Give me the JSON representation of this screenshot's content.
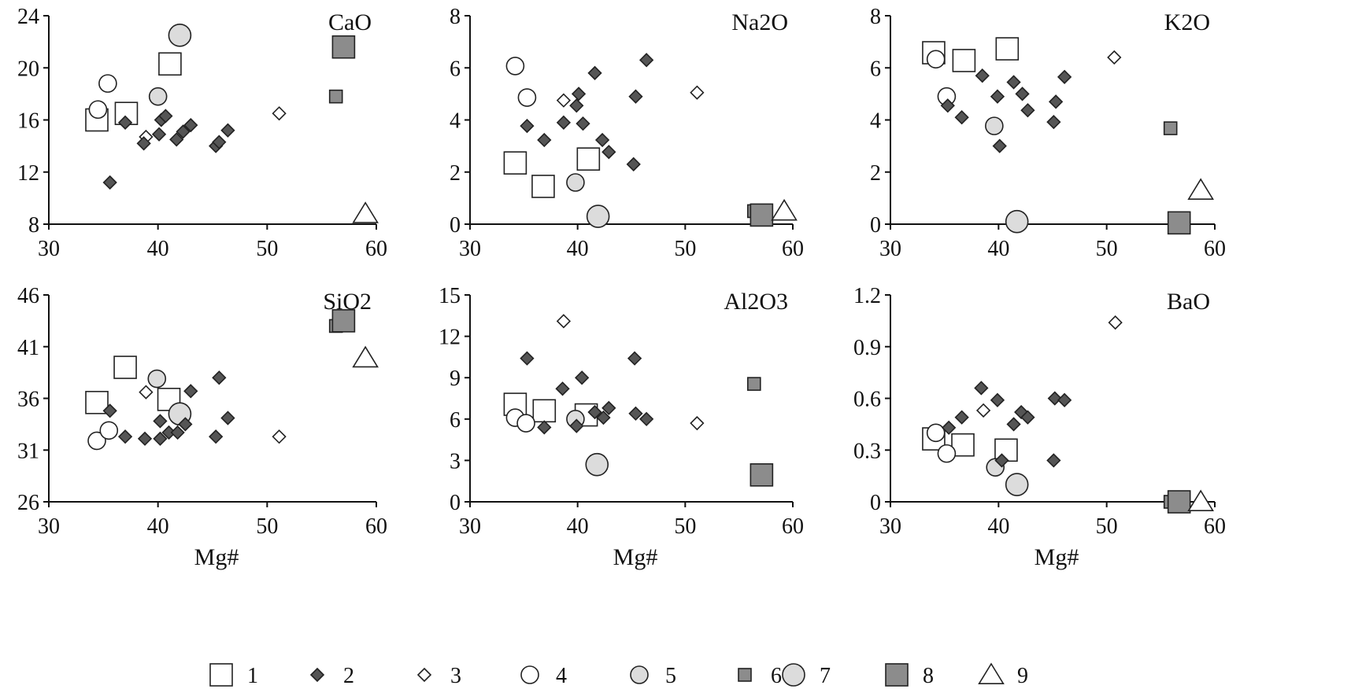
{
  "chart_data": {
    "type": "scatter",
    "xlabel": "Mg#",
    "legend": {
      "placement": "bottom",
      "entries": [
        "1",
        "2",
        "3",
        "4",
        "5",
        "6",
        "7",
        "8",
        "9"
      ]
    },
    "styles": {
      "1": {
        "shape": "square",
        "fill": "#ffffff",
        "size": "large"
      },
      "2": {
        "shape": "diamond",
        "fill": "#555555",
        "size": "small"
      },
      "3": {
        "shape": "diamond",
        "fill": "#ffffff",
        "size": "small"
      },
      "4": {
        "shape": "circle",
        "fill": "#ffffff",
        "size": "medium"
      },
      "5": {
        "shape": "circle",
        "fill": "#dcdcdc",
        "size": "medium"
      },
      "6": {
        "shape": "square",
        "fill": "#8c8c8c",
        "size": "small"
      },
      "7": {
        "shape": "circle",
        "fill": "#dcdcdc",
        "size": "large"
      },
      "8": {
        "shape": "square",
        "fill": "#8c8c8c",
        "size": "large"
      },
      "9": {
        "shape": "triangle",
        "fill": "#ffffff",
        "size": "large"
      }
    },
    "panels": [
      {
        "title": "CaO",
        "xlim": [
          30,
          60
        ],
        "xticks": [
          "30",
          "40",
          "50",
          "60"
        ],
        "ylim": [
          8,
          24
        ],
        "yticks": [
          "8",
          "12",
          "16",
          "20",
          "24"
        ],
        "series": {
          "1": [
            [
              34.4,
              16.0
            ],
            [
              37.1,
              16.5
            ],
            [
              41.1,
              20.3
            ]
          ],
          "2": [
            [
              35.6,
              11.2
            ],
            [
              37.0,
              15.8
            ],
            [
              38.7,
              14.2
            ],
            [
              40.1,
              14.9
            ],
            [
              40.3,
              16.0
            ],
            [
              40.7,
              16.3
            ],
            [
              41.7,
              14.5
            ],
            [
              42.3,
              15.1
            ],
            [
              43.0,
              15.6
            ],
            [
              45.3,
              14.0
            ],
            [
              45.6,
              14.3
            ],
            [
              46.4,
              15.2
            ]
          ],
          "3": [
            [
              38.9,
              14.7
            ],
            [
              51.1,
              16.5
            ]
          ],
          "4": [
            [
              34.5,
              16.8
            ],
            [
              35.4,
              18.8
            ]
          ],
          "5": [
            [
              40.0,
              17.8
            ]
          ],
          "6": [
            [
              56.3,
              17.8
            ]
          ],
          "7": [
            [
              42.0,
              22.5
            ]
          ],
          "8": [
            [
              57.0,
              21.6
            ]
          ],
          "9": [
            [
              59.0,
              8.8
            ]
          ]
        }
      },
      {
        "title": "Na2O",
        "xlim": [
          30,
          60
        ],
        "xticks": [
          "30",
          "40",
          "50",
          "60"
        ],
        "ylim": [
          0,
          8
        ],
        "yticks": [
          "0",
          "2",
          "4",
          "6",
          "8"
        ],
        "series": {
          "1": [
            [
              34.2,
              2.35
            ],
            [
              36.8,
              1.45
            ],
            [
              41.0,
              2.5
            ]
          ],
          "2": [
            [
              35.3,
              3.77
            ],
            [
              36.9,
              3.23
            ],
            [
              38.7,
              3.9
            ],
            [
              39.9,
              4.55
            ],
            [
              40.1,
              5.0
            ],
            [
              40.5,
              3.86
            ],
            [
              41.6,
              5.8
            ],
            [
              42.3,
              3.23
            ],
            [
              42.9,
              2.77
            ],
            [
              45.4,
              4.9
            ],
            [
              45.2,
              2.3
            ],
            [
              46.4,
              6.3
            ]
          ],
          "3": [
            [
              38.7,
              4.75
            ],
            [
              51.1,
              5.05
            ]
          ],
          "4": [
            [
              34.2,
              6.07
            ],
            [
              35.3,
              4.86
            ]
          ],
          "5": [
            [
              39.8,
              1.6
            ]
          ],
          "6": [
            [
              56.4,
              0.5
            ]
          ],
          "7": [
            [
              41.9,
              0.3
            ]
          ],
          "8": [
            [
              57.1,
              0.35
            ]
          ],
          "9": [
            [
              59.2,
              0.5
            ]
          ]
        }
      },
      {
        "title": "K2O",
        "xlim": [
          30,
          60
        ],
        "xticks": [
          "30",
          "40",
          "50",
          "60"
        ],
        "ylim": [
          0,
          8
        ],
        "yticks": [
          "0",
          "2",
          "4",
          "6",
          "8"
        ],
        "series": {
          "1": [
            [
              34.0,
              6.58
            ],
            [
              36.8,
              6.28
            ],
            [
              40.8,
              6.73
            ]
          ],
          "2": [
            [
              35.3,
              4.55
            ],
            [
              36.6,
              4.1
            ],
            [
              38.5,
              5.7
            ],
            [
              39.9,
              4.9
            ],
            [
              40.1,
              3.0
            ],
            [
              41.4,
              5.45
            ],
            [
              42.2,
              5.0
            ],
            [
              42.7,
              4.37
            ],
            [
              45.1,
              3.92
            ],
            [
              45.3,
              4.7
            ],
            [
              46.1,
              5.65
            ]
          ],
          "3": [
            [
              50.7,
              6.4
            ]
          ],
          "4": [
            [
              34.2,
              6.33
            ],
            [
              35.2,
              4.9
            ]
          ],
          "5": [
            [
              39.6,
              3.77
            ]
          ],
          "6": [
            [
              55.9,
              3.68
            ]
          ],
          "7": [
            [
              41.7,
              0.1
            ]
          ],
          "8": [
            [
              56.7,
              0.05
            ]
          ],
          "9": [
            [
              58.7,
              1.3
            ]
          ]
        }
      },
      {
        "title": "SiO2",
        "xlim": [
          30,
          60
        ],
        "xticks": [
          "30",
          "40",
          "50",
          "60"
        ],
        "ylim": [
          26,
          46
        ],
        "yticks": [
          "26",
          "31",
          "36",
          "41",
          "46"
        ],
        "series": {
          "1": [
            [
              34.4,
              35.6
            ],
            [
              37.0,
              39.0
            ],
            [
              41.0,
              35.9
            ]
          ],
          "2": [
            [
              35.6,
              34.8
            ],
            [
              37.0,
              32.3
            ],
            [
              38.8,
              32.1
            ],
            [
              40.2,
              33.8
            ],
            [
              40.2,
              32.1
            ],
            [
              41.0,
              32.7
            ],
            [
              41.8,
              32.7
            ],
            [
              42.5,
              33.5
            ],
            [
              43.0,
              36.7
            ],
            [
              45.3,
              32.3
            ],
            [
              45.6,
              38.0
            ],
            [
              46.4,
              34.1
            ]
          ],
          "3": [
            [
              38.9,
              36.6
            ],
            [
              51.1,
              32.3
            ]
          ],
          "4": [
            [
              34.4,
              31.9
            ],
            [
              35.5,
              32.9
            ]
          ],
          "5": [
            [
              39.9,
              37.9
            ]
          ],
          "6": [
            [
              56.3,
              43.0
            ]
          ],
          "7": [
            [
              42.0,
              34.5
            ]
          ],
          "8": [
            [
              57.0,
              43.5
            ]
          ],
          "9": [
            [
              59.0,
              39.9
            ]
          ]
        }
      },
      {
        "title": "Al2O3",
        "xlim": [
          30,
          60
        ],
        "xticks": [
          "30",
          "40",
          "50",
          "60"
        ],
        "ylim": [
          0,
          15
        ],
        "yticks": [
          "0",
          "3",
          "6",
          "9",
          "12",
          "15"
        ],
        "series": {
          "1": [
            [
              34.2,
              7.07
            ],
            [
              36.9,
              6.6
            ],
            [
              40.8,
              6.3
            ]
          ],
          "2": [
            [
              35.3,
              10.4
            ],
            [
              36.9,
              5.4
            ],
            [
              38.6,
              8.2
            ],
            [
              39.9,
              5.5
            ],
            [
              40.4,
              9.0
            ],
            [
              41.6,
              6.5
            ],
            [
              42.4,
              6.1
            ],
            [
              42.9,
              6.8
            ],
            [
              45.3,
              10.4
            ],
            [
              45.4,
              6.4
            ],
            [
              46.4,
              6.0
            ]
          ],
          "3": [
            [
              38.7,
              13.1
            ],
            [
              51.1,
              5.7
            ]
          ],
          "4": [
            [
              34.2,
              6.1
            ],
            [
              35.2,
              5.7
            ]
          ],
          "5": [
            [
              39.8,
              6.0
            ]
          ],
          "6": [
            [
              56.4,
              8.55
            ]
          ],
          "7": [
            [
              41.8,
              2.7
            ]
          ],
          "8": [
            [
              57.1,
              1.95
            ]
          ],
          "9": []
        }
      },
      {
        "title": "BaO",
        "xlim": [
          30,
          60
        ],
        "xticks": [
          "30",
          "40",
          "50",
          "60"
        ],
        "ylim": [
          0,
          1.2
        ],
        "yticks": [
          "0",
          "0.3",
          "0.6",
          "0.9",
          "1.2"
        ],
        "series": {
          "1": [
            [
              34.0,
              0.365
            ],
            [
              36.7,
              0.33
            ],
            [
              40.7,
              0.3
            ]
          ],
          "2": [
            [
              35.4,
              0.43
            ],
            [
              36.6,
              0.49
            ],
            [
              38.4,
              0.66
            ],
            [
              39.9,
              0.59
            ],
            [
              40.3,
              0.24
            ],
            [
              41.4,
              0.45
            ],
            [
              42.1,
              0.52
            ],
            [
              42.7,
              0.49
            ],
            [
              45.1,
              0.24
            ],
            [
              45.2,
              0.6
            ],
            [
              46.1,
              0.59
            ]
          ],
          "3": [
            [
              38.6,
              0.53
            ],
            [
              50.8,
              1.04
            ]
          ],
          "4": [
            [
              34.2,
              0.4
            ],
            [
              35.2,
              0.28
            ]
          ],
          "5": [
            [
              39.7,
              0.2
            ]
          ],
          "6": [
            [
              55.9,
              0.0
            ]
          ],
          "7": [
            [
              41.7,
              0.1
            ]
          ],
          "8": [
            [
              56.7,
              0.0
            ]
          ],
          "9": [
            [
              58.7,
              0.0
            ]
          ]
        }
      }
    ]
  }
}
